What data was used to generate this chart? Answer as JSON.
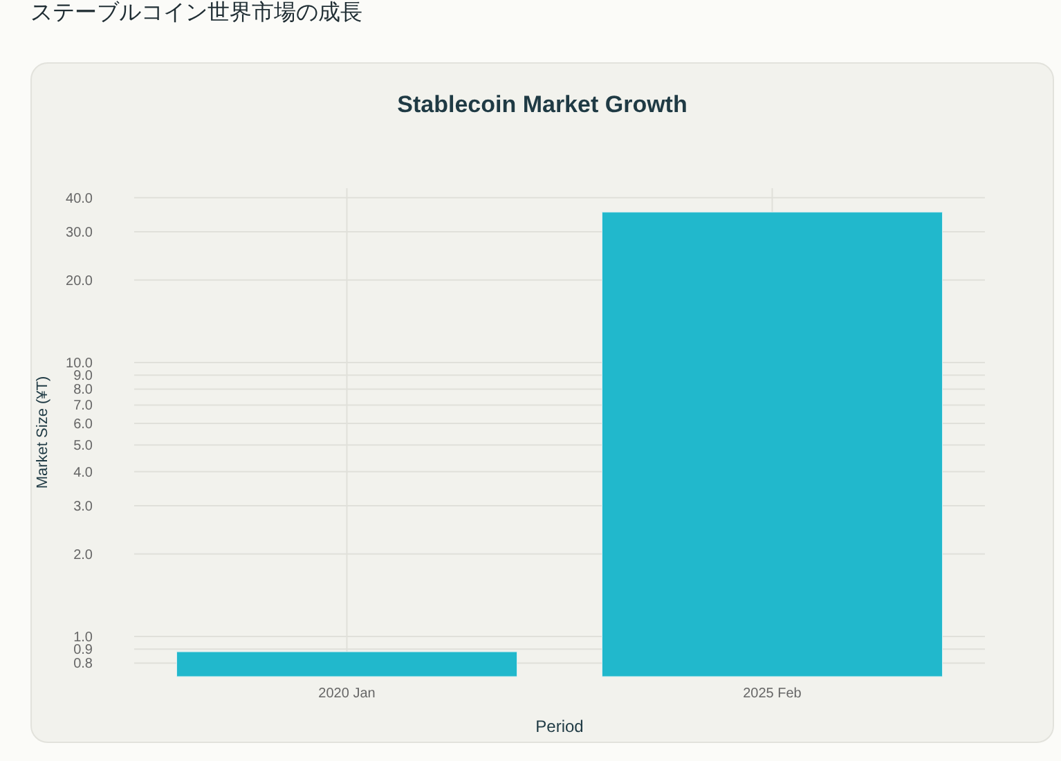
{
  "chart_data": {
    "type": "bar",
    "title": "ステーブルコイン世界市場の成長",
    "subtitle": "Stablecoin Market Growth",
    "xlabel": "Period",
    "ylabel": "Market Size (¥T)",
    "categories": [
      "2020 Jan",
      "2025 Feb"
    ],
    "values": [
      0.88,
      35.4
    ],
    "color": "#21b8cc",
    "log": true,
    "ylim": [
      0.714,
      43.3
    ],
    "yticks": [
      {
        "value": 0.8,
        "label": "0.8"
      },
      {
        "value": 0.9,
        "label": "0.9"
      },
      {
        "value": 1,
        "label": "1.0"
      },
      {
        "value": 2,
        "label": "2.0"
      },
      {
        "value": 3,
        "label": "3.0"
      },
      {
        "value": 4,
        "label": "4.0"
      },
      {
        "value": 5,
        "label": "5.0"
      },
      {
        "value": 6,
        "label": "6.0"
      },
      {
        "value": 7,
        "label": "7.0"
      },
      {
        "value": 8,
        "label": "8.0"
      },
      {
        "value": 9,
        "label": "9.0"
      },
      {
        "value": 10,
        "label": "10.0"
      },
      {
        "value": 20,
        "label": "20.0"
      },
      {
        "value": 30,
        "label": "30.0"
      },
      {
        "value": 40,
        "label": "40.0"
      }
    ],
    "grid": true
  }
}
